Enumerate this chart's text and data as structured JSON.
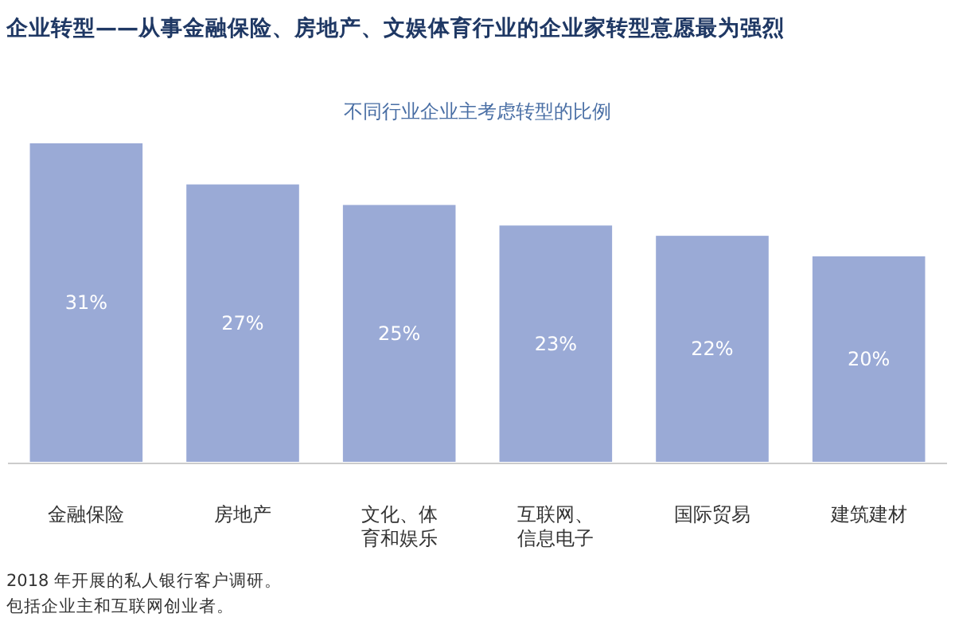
{
  "chart_data": {
    "type": "bar",
    "title": "企业转型——从事金融保险、房地产、文娱体育行业的企业家转型意愿最为强烈",
    "subtitle": "不同行业企业主考虑转型的比例",
    "categories": [
      "金融保险",
      "房地产",
      "文化、体育和娱乐",
      "互联网、信息电子",
      "国际贸易",
      "建筑建材"
    ],
    "values": [
      31,
      27,
      25,
      23,
      22,
      20
    ],
    "value_labels": [
      "31%",
      "27%",
      "25%",
      "23%",
      "22%",
      "20%"
    ],
    "color": "#9aaad6",
    "annotations": [
      "2018 年开展的私人银行客户调研。",
      "包括企业主和互联网创业者。"
    ]
  }
}
